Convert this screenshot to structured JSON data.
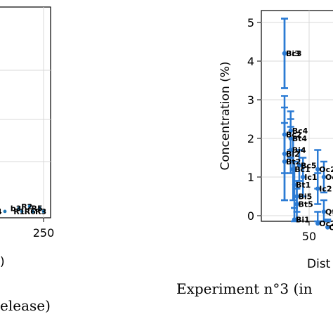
{
  "chart_data": [
    {
      "type": "scatter",
      "partial": true,
      "xlabel": "",
      "ylabel": "",
      "x_ticks": [
        250
      ],
      "xlabel_fragment": ")",
      "caption_fragment": "elease)",
      "series": [
        {
          "color": "#1f77b4",
          "points": [
            {
              "label": "b3",
              "x": 218,
              "y": 0.1
            },
            {
              "label": "R2",
              "x": 232,
              "y": 0.15
            },
            {
              "label": "R5",
              "x": 245,
              "y": 0.1
            },
            {
              "label": "4",
              "x": 200,
              "y": 0.02
            },
            {
              "label": "R1",
              "x": 222,
              "y": 0.02
            },
            {
              "label": "R6",
              "x": 236,
              "y": 0.02
            },
            {
              "label": "R3",
              "x": 250,
              "y": 0.02
            }
          ]
        }
      ]
    },
    {
      "type": "scatter",
      "partial": true,
      "ylabel": "Concentration (%)",
      "xlabel_fragment": "Dist",
      "caption_fragment": "Experiment n°3 (in",
      "ylim": [
        0,
        5.2
      ],
      "y_ticks": [
        0,
        1,
        2,
        3,
        4,
        5
      ],
      "x_ticks": [
        50
      ],
      "grid": true,
      "series": [
        {
          "color": "#2b7bd4",
          "points": [
            {
              "label": "Bc3",
              "x": 30,
              "y": 4.2,
              "err": 0.9
            },
            {
              "label": "Bi3",
              "x": 30,
              "y": 4.2,
              "err": 0.9
            },
            {
              "label": "Bc4",
              "x": 35,
              "y": 2.2,
              "err": 0.5
            },
            {
              "label": "Bt4",
              "x": 35,
              "y": 2.0,
              "err": 0.5
            },
            {
              "label": "Bc2",
              "x": 30,
              "y": 2.1,
              "err": 1.0
            },
            {
              "label": "Bi4",
              "x": 35,
              "y": 1.7,
              "err": 0.6
            },
            {
              "label": "Bc5",
              "x": 42,
              "y": 1.3,
              "err": 0.4
            },
            {
              "label": "Bi2",
              "x": 30,
              "y": 1.6,
              "err": 1.2
            },
            {
              "label": "Bt2",
              "x": 30,
              "y": 1.4,
              "err": 1.0
            },
            {
              "label": "Oc2",
              "x": 57,
              "y": 1.2,
              "err": 0.5
            },
            {
              "label": "Bc1",
              "x": 37,
              "y": 1.2,
              "err": 0.8
            },
            {
              "label": "Ic1",
              "x": 45,
              "y": 1.0,
              "err": 0.5
            },
            {
              "label": "Oc",
              "x": 62,
              "y": 1.0,
              "err": 0.4
            },
            {
              "label": "Bt1",
              "x": 38,
              "y": 0.8,
              "err": 0.6
            },
            {
              "label": "Ic2",
              "x": 57,
              "y": 0.7,
              "err": 0.4
            },
            {
              "label": "Bi5",
              "x": 40,
              "y": 0.5,
              "err": 0.4
            },
            {
              "label": "Bt5",
              "x": 40,
              "y": 0.3,
              "err": 0.4
            },
            {
              "label": "Qt",
              "x": 62,
              "y": 0.1,
              "err": 0.3
            },
            {
              "label": "Bi1",
              "x": 38,
              "y": -0.1,
              "err": 0.3
            },
            {
              "label": "Oc2",
              "x": 57,
              "y": -0.2,
              "err": 0.3
            },
            {
              "label": "Oi",
              "x": 65,
              "y": -0.3,
              "err": 0.2
            }
          ]
        }
      ]
    }
  ]
}
